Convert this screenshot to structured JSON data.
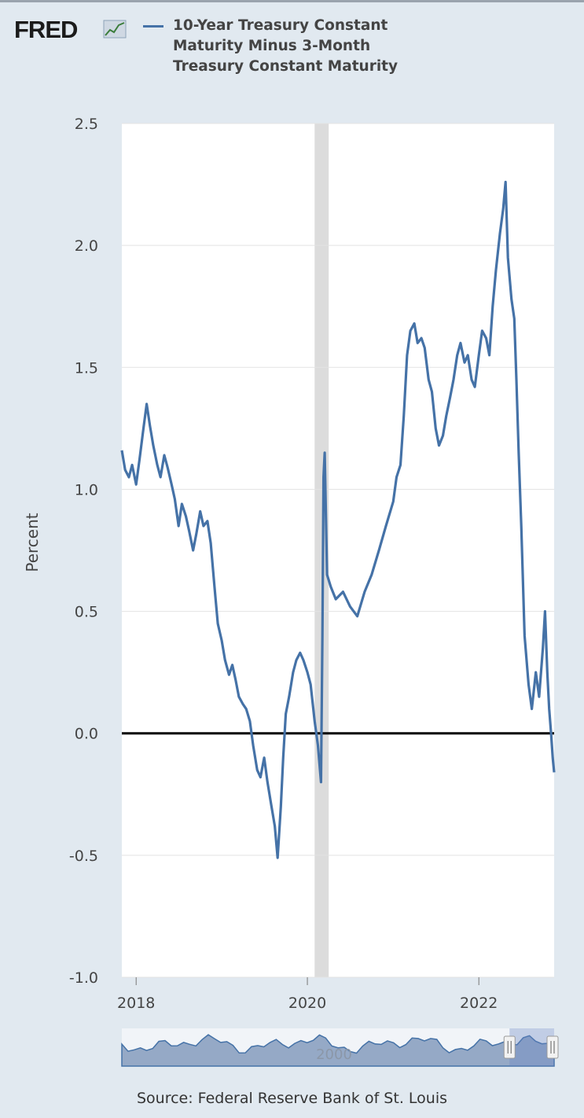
{
  "logo": {
    "text": "FRED",
    "icon": "chart-line-icon"
  },
  "legend": {
    "label": "10-Year Treasury Constant Maturity Minus 3-Month Treasury Constant Maturity",
    "color": "#4572a7"
  },
  "source": "Source: Federal Reserve Bank of St. Louis",
  "navigator": {
    "label": "2000",
    "range_start_fraction": 0.875,
    "range_end_fraction": 1.0
  },
  "chart_data": {
    "type": "line",
    "title": "",
    "ylabel": "Percent",
    "xlabel": "",
    "ylim": [
      -1.0,
      2.5
    ],
    "xlim": [
      "2017-11-01",
      "2022-11-18"
    ],
    "yticks": [
      "2.5",
      "2.0",
      "1.5",
      "1.0",
      "0.5",
      "0.0",
      "-0.5",
      "-1.0"
    ],
    "xticks": [
      {
        "label": "2018",
        "date": "2018-01-01"
      },
      {
        "label": "2020",
        "date": "2020-01-01"
      },
      {
        "label": "2022",
        "date": "2022-01-01"
      }
    ],
    "grid": true,
    "reference_line": 0,
    "recession_shading": [
      {
        "start": "2020-02-01",
        "end": "2020-04-01"
      }
    ],
    "series": [
      {
        "color": "#4572a7",
        "points": [
          [
            "2017-11-01",
            1.16
          ],
          [
            "2017-11-15",
            1.08
          ],
          [
            "2017-12-01",
            1.05
          ],
          [
            "2017-12-15",
            1.1
          ],
          [
            "2018-01-01",
            1.02
          ],
          [
            "2018-01-15",
            1.12
          ],
          [
            "2018-02-01",
            1.25
          ],
          [
            "2018-02-15",
            1.35
          ],
          [
            "2018-03-01",
            1.26
          ],
          [
            "2018-03-15",
            1.18
          ],
          [
            "2018-04-01",
            1.1
          ],
          [
            "2018-04-15",
            1.05
          ],
          [
            "2018-05-01",
            1.14
          ],
          [
            "2018-05-15",
            1.09
          ],
          [
            "2018-06-01",
            1.02
          ],
          [
            "2018-06-15",
            0.96
          ],
          [
            "2018-07-01",
            0.85
          ],
          [
            "2018-07-15",
            0.94
          ],
          [
            "2018-08-01",
            0.89
          ],
          [
            "2018-08-15",
            0.83
          ],
          [
            "2018-09-01",
            0.75
          ],
          [
            "2018-09-15",
            0.82
          ],
          [
            "2018-10-01",
            0.91
          ],
          [
            "2018-10-15",
            0.85
          ],
          [
            "2018-11-01",
            0.87
          ],
          [
            "2018-11-15",
            0.78
          ],
          [
            "2018-12-01",
            0.6
          ],
          [
            "2018-12-15",
            0.45
          ],
          [
            "2019-01-01",
            0.38
          ],
          [
            "2019-01-15",
            0.3
          ],
          [
            "2019-02-01",
            0.24
          ],
          [
            "2019-02-15",
            0.28
          ],
          [
            "2019-03-01",
            0.22
          ],
          [
            "2019-03-15",
            0.15
          ],
          [
            "2019-04-01",
            0.12
          ],
          [
            "2019-04-15",
            0.1
          ],
          [
            "2019-05-01",
            0.05
          ],
          [
            "2019-05-15",
            -0.05
          ],
          [
            "2019-06-01",
            -0.15
          ],
          [
            "2019-06-15",
            -0.18
          ],
          [
            "2019-07-01",
            -0.1
          ],
          [
            "2019-07-15",
            -0.2
          ],
          [
            "2019-08-01",
            -0.3
          ],
          [
            "2019-08-15",
            -0.38
          ],
          [
            "2019-08-27",
            -0.51
          ],
          [
            "2019-09-10",
            -0.3
          ],
          [
            "2019-09-20",
            -0.1
          ],
          [
            "2019-10-01",
            0.08
          ],
          [
            "2019-10-15",
            0.15
          ],
          [
            "2019-11-01",
            0.25
          ],
          [
            "2019-11-15",
            0.3
          ],
          [
            "2019-12-01",
            0.33
          ],
          [
            "2019-12-15",
            0.3
          ],
          [
            "2020-01-01",
            0.25
          ],
          [
            "2020-01-15",
            0.2
          ],
          [
            "2020-02-01",
            0.05
          ],
          [
            "2020-02-15",
            -0.05
          ],
          [
            "2020-02-28",
            -0.2
          ],
          [
            "2020-03-05",
            0.4
          ],
          [
            "2020-03-10",
            1.05
          ],
          [
            "2020-03-15",
            1.15
          ],
          [
            "2020-03-25",
            0.65
          ],
          [
            "2020-04-10",
            0.6
          ],
          [
            "2020-05-01",
            0.55
          ],
          [
            "2020-06-01",
            0.58
          ],
          [
            "2020-07-01",
            0.52
          ],
          [
            "2020-08-01",
            0.48
          ],
          [
            "2020-09-01",
            0.58
          ],
          [
            "2020-10-01",
            0.65
          ],
          [
            "2020-11-01",
            0.75
          ],
          [
            "2020-12-01",
            0.85
          ],
          [
            "2021-01-01",
            0.95
          ],
          [
            "2021-01-15",
            1.05
          ],
          [
            "2021-02-01",
            1.1
          ],
          [
            "2021-02-15",
            1.3
          ],
          [
            "2021-03-01",
            1.55
          ],
          [
            "2021-03-15",
            1.65
          ],
          [
            "2021-04-01",
            1.68
          ],
          [
            "2021-04-15",
            1.6
          ],
          [
            "2021-05-01",
            1.62
          ],
          [
            "2021-05-15",
            1.58
          ],
          [
            "2021-06-01",
            1.45
          ],
          [
            "2021-06-15",
            1.4
          ],
          [
            "2021-07-01",
            1.25
          ],
          [
            "2021-07-15",
            1.18
          ],
          [
            "2021-08-01",
            1.22
          ],
          [
            "2021-08-15",
            1.3
          ],
          [
            "2021-09-01",
            1.38
          ],
          [
            "2021-09-15",
            1.45
          ],
          [
            "2021-10-01",
            1.55
          ],
          [
            "2021-10-15",
            1.6
          ],
          [
            "2021-11-01",
            1.52
          ],
          [
            "2021-11-15",
            1.55
          ],
          [
            "2021-12-01",
            1.45
          ],
          [
            "2021-12-15",
            1.42
          ],
          [
            "2022-01-01",
            1.55
          ],
          [
            "2022-01-15",
            1.65
          ],
          [
            "2022-02-01",
            1.62
          ],
          [
            "2022-02-15",
            1.55
          ],
          [
            "2022-03-01",
            1.75
          ],
          [
            "2022-03-15",
            1.9
          ],
          [
            "2022-04-01",
            2.05
          ],
          [
            "2022-04-15",
            2.15
          ],
          [
            "2022-04-25",
            2.26
          ],
          [
            "2022-05-05",
            1.95
          ],
          [
            "2022-05-20",
            1.78
          ],
          [
            "2022-06-01",
            1.7
          ],
          [
            "2022-06-10",
            1.45
          ],
          [
            "2022-06-20",
            1.15
          ],
          [
            "2022-07-01",
            0.85
          ],
          [
            "2022-07-15",
            0.4
          ],
          [
            "2022-08-01",
            0.2
          ],
          [
            "2022-08-15",
            0.1
          ],
          [
            "2022-09-01",
            0.25
          ],
          [
            "2022-09-15",
            0.15
          ],
          [
            "2022-10-01",
            0.35
          ],
          [
            "2022-10-10",
            0.5
          ],
          [
            "2022-10-20",
            0.25
          ],
          [
            "2022-10-28",
            0.1
          ],
          [
            "2022-11-05",
            0.0
          ],
          [
            "2022-11-12",
            -0.1
          ],
          [
            "2022-11-18",
            -0.16
          ]
        ]
      }
    ]
  }
}
